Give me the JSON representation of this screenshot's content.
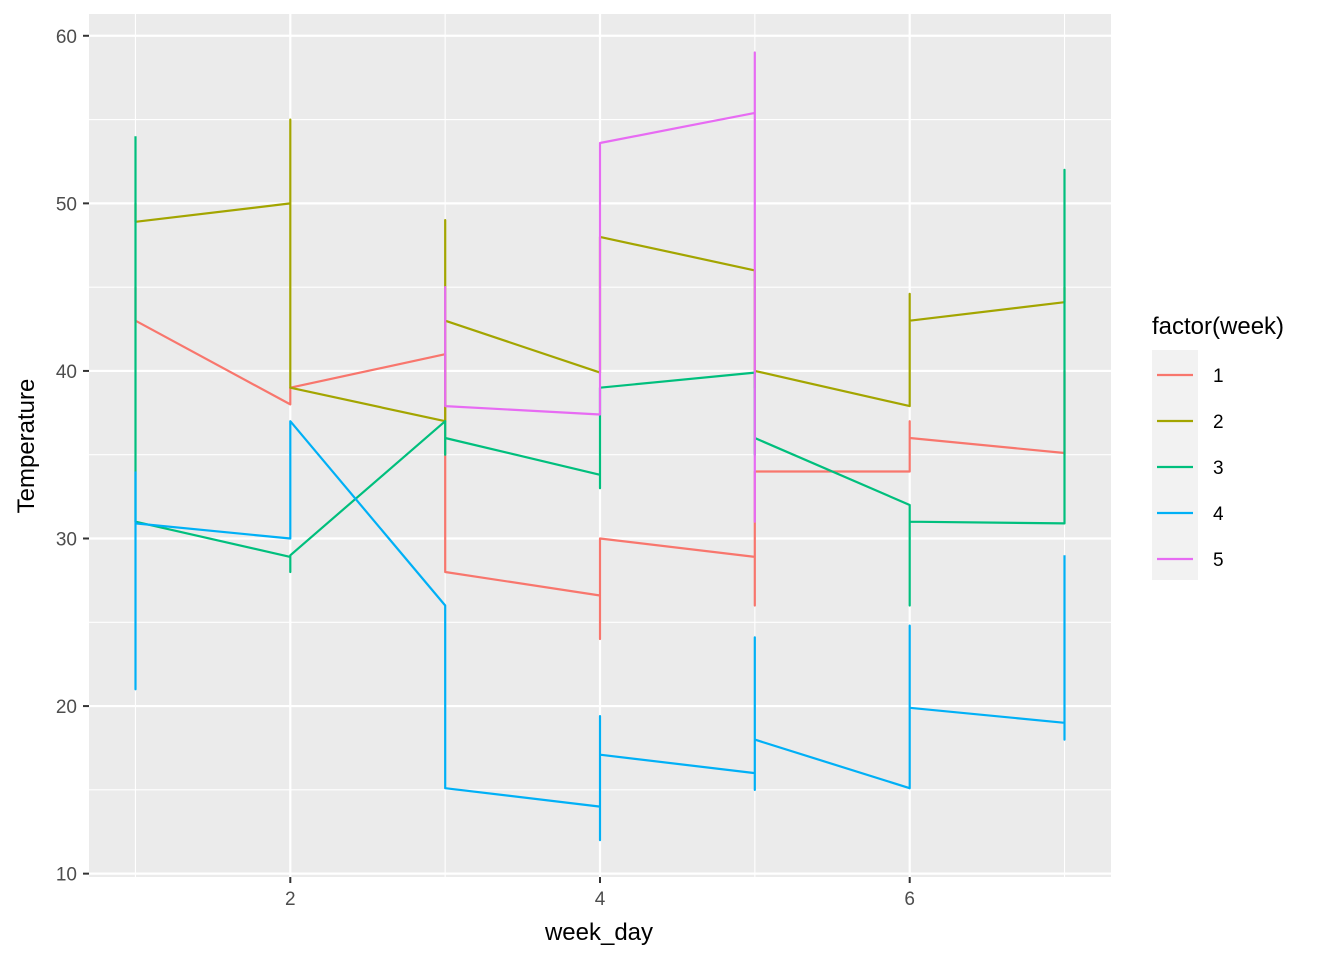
{
  "chart_data": {
    "type": "line",
    "xlabel": "week_day",
    "ylabel": "Temperature",
    "xlim": [
      0.7,
      7.3
    ],
    "ylim": [
      9.8,
      61.3
    ],
    "x_ticks": [
      2,
      4,
      6
    ],
    "y_ticks": [
      10,
      20,
      30,
      40,
      50,
      60
    ],
    "grid": true,
    "legend": {
      "title": "factor(week)",
      "position": "right"
    },
    "series": [
      {
        "name": "1",
        "color": "#F8766D",
        "points": [
          [
            1,
            43
          ],
          [
            1,
            45
          ],
          [
            1,
            44
          ],
          [
            1,
            43
          ],
          [
            2,
            38
          ],
          [
            2,
            39
          ],
          [
            3,
            41
          ],
          [
            3,
            30
          ],
          [
            3,
            28
          ],
          [
            4,
            26.6
          ],
          [
            4,
            24
          ],
          [
            4,
            30
          ],
          [
            5,
            28.9
          ],
          [
            5,
            26
          ],
          [
            5,
            31
          ],
          [
            5,
            34
          ],
          [
            6,
            34
          ],
          [
            6,
            37
          ],
          [
            6,
            36
          ],
          [
            7,
            35.1
          ],
          [
            7,
            40
          ],
          [
            7,
            35
          ]
        ]
      },
      {
        "name": "2",
        "color": "#A3A500",
        "points": [
          [
            1,
            50
          ],
          [
            1,
            48.9
          ],
          [
            2,
            50
          ],
          [
            2,
            55
          ],
          [
            2,
            39
          ],
          [
            3,
            37
          ],
          [
            3,
            49
          ],
          [
            3,
            43
          ],
          [
            4,
            39.9
          ],
          [
            4,
            47
          ],
          [
            4,
            48
          ],
          [
            5,
            46
          ],
          [
            5,
            39
          ],
          [
            5,
            40
          ],
          [
            6,
            37.9
          ],
          [
            6,
            44.6
          ],
          [
            6,
            43
          ],
          [
            7,
            44.1
          ],
          [
            7,
            45
          ]
        ]
      },
      {
        "name": "3",
        "color": "#00BF7D",
        "points": [
          [
            1,
            54
          ],
          [
            1,
            35
          ],
          [
            1,
            31
          ],
          [
            2,
            28.9
          ],
          [
            2,
            28
          ],
          [
            2,
            29
          ],
          [
            3,
            37
          ],
          [
            3,
            35
          ],
          [
            3,
            36
          ],
          [
            4,
            33.8
          ],
          [
            4,
            33
          ],
          [
            4,
            37
          ],
          [
            4,
            39
          ],
          [
            5,
            39.9
          ],
          [
            5,
            35
          ],
          [
            5,
            36
          ],
          [
            6,
            32
          ],
          [
            6,
            26
          ],
          [
            6,
            31
          ],
          [
            7,
            30.9
          ],
          [
            7,
            52
          ],
          [
            7,
            42
          ]
        ]
      },
      {
        "name": "4",
        "color": "#00B0F6",
        "points": [
          [
            1,
            34
          ],
          [
            1,
            21
          ],
          [
            1,
            30.9
          ],
          [
            2,
            30
          ],
          [
            2,
            37
          ],
          [
            3,
            26
          ],
          [
            3,
            15.1
          ],
          [
            4,
            14
          ],
          [
            4,
            12
          ],
          [
            4,
            19.4
          ],
          [
            4,
            17.1
          ],
          [
            5,
            16
          ],
          [
            5,
            15
          ],
          [
            5,
            24.1
          ],
          [
            5,
            18
          ],
          [
            6,
            15.1
          ],
          [
            6,
            24.8
          ],
          [
            6,
            19.9
          ],
          [
            7,
            19
          ],
          [
            7,
            18
          ],
          [
            7,
            29
          ]
        ]
      },
      {
        "name": "5",
        "color": "#E76BF3",
        "points": [
          [
            3,
            37.9
          ],
          [
            3,
            45
          ],
          [
            3,
            38
          ],
          [
            3,
            37.9
          ],
          [
            4,
            37.4
          ],
          [
            4,
            50
          ],
          [
            4,
            53.6
          ],
          [
            5,
            55.4
          ],
          [
            5,
            59
          ],
          [
            5,
            31
          ],
          [
            5,
            48
          ]
        ]
      }
    ]
  }
}
